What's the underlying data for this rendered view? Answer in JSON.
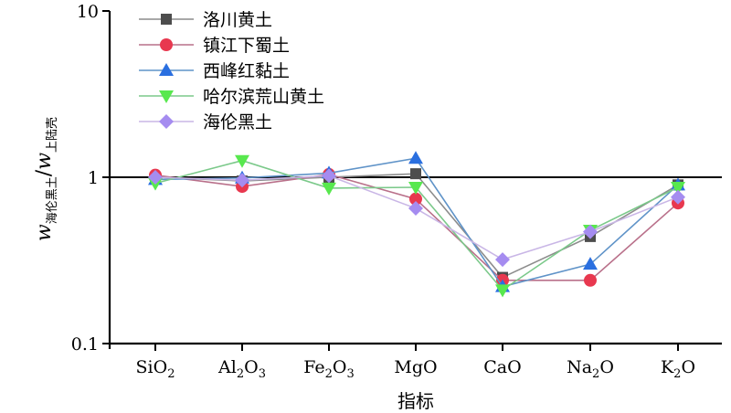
{
  "chart_data": {
    "type": "line",
    "y_scale": "log",
    "ylim": [
      0.1,
      10
    ],
    "y_ticks": [
      {
        "value": 0.1,
        "label": "0.1"
      },
      {
        "value": 1,
        "label": "1"
      },
      {
        "value": 10,
        "label": "10"
      }
    ],
    "reference_line": 1,
    "categories": [
      {
        "main": "SiO",
        "sub": "2",
        "tail": ""
      },
      {
        "main": "Al",
        "sub": "2",
        "tail": "O",
        "sub2": "3"
      },
      {
        "main": "Fe",
        "sub": "2",
        "tail": "O",
        "sub2": "3"
      },
      {
        "main": "MgO",
        "sub": "",
        "tail": ""
      },
      {
        "main": "CaO",
        "sub": "",
        "tail": ""
      },
      {
        "main": "Na",
        "sub": "2",
        "tail": "O"
      },
      {
        "main": "K",
        "sub": "2",
        "tail": "O"
      }
    ],
    "xlabel": "指标",
    "ylabel": {
      "main": "w",
      "sub": "海伦黑土",
      "sep": "/",
      "main2": "w",
      "sub2": "上陆壳"
    },
    "legend_position": "top-left",
    "series": [
      {
        "name": "洛川黄土",
        "marker": "square",
        "color": "#4d4d4d",
        "line_color": "#8c8c8c",
        "values": [
          1.0,
          0.95,
          1.0,
          1.05,
          0.25,
          0.44,
          0.9
        ]
      },
      {
        "name": "镇江下蜀土",
        "marker": "circle",
        "color": "#e8384f",
        "line_color": "#b9708a",
        "values": [
          1.03,
          0.88,
          1.04,
          0.74,
          0.24,
          0.24,
          0.7
        ]
      },
      {
        "name": "西峰红黏土",
        "marker": "triangle-up",
        "color": "#2a6fe0",
        "line_color": "#5f93c8",
        "values": [
          0.97,
          0.99,
          1.06,
          1.3,
          0.22,
          0.3,
          0.9
        ]
      },
      {
        "name": "哈尔滨荒山黄土",
        "marker": "triangle-down",
        "color": "#58e84e",
        "line_color": "#7bc98a",
        "values": [
          0.92,
          1.26,
          0.86,
          0.87,
          0.21,
          0.48,
          0.87
        ]
      },
      {
        "name": "海伦黑土",
        "marker": "diamond",
        "color": "#a58cf0",
        "line_color": "#c9b6e6",
        "values": [
          1.0,
          0.96,
          1.02,
          0.65,
          0.32,
          0.47,
          0.76
        ]
      }
    ]
  }
}
